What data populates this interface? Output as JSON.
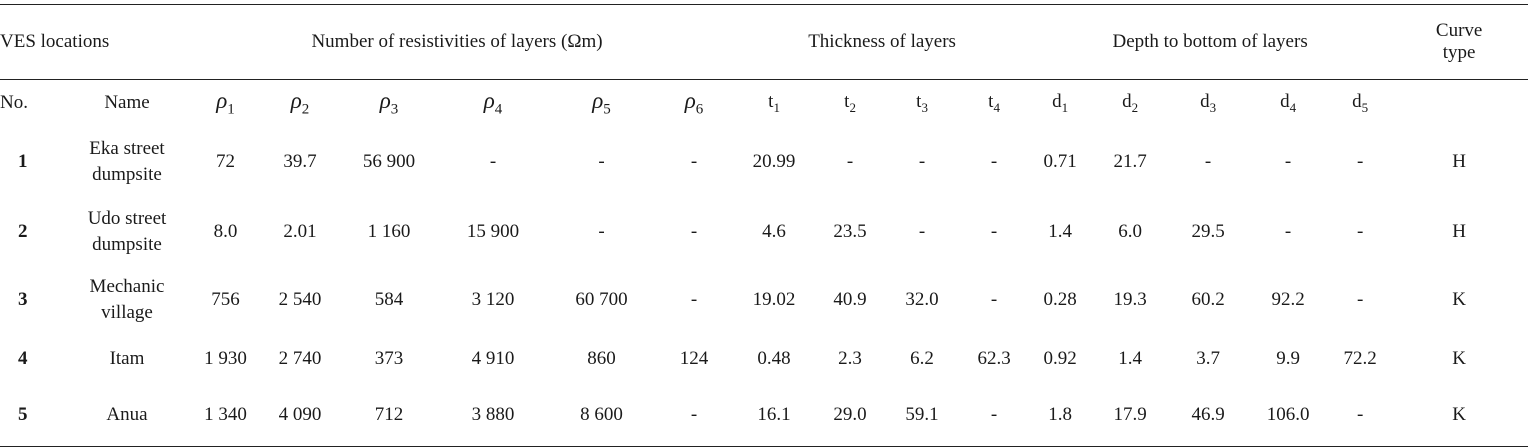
{
  "header": {
    "ves_locations": "VES locations",
    "resistivities": "Number of resistivities of layers (Ωm)",
    "thickness": "Thickness of layers",
    "depth": "Depth to bottom of layers",
    "curve_type_line1": "Curve",
    "curve_type_line2": "type"
  },
  "subheader": {
    "no": "No.",
    "name": "Name",
    "rho_symbol": "ρ",
    "rho_subs": [
      "1",
      "2",
      "3",
      "4",
      "5",
      "6"
    ],
    "t_symbol": "t",
    "t_subs": [
      "1",
      "2",
      "3",
      "4"
    ],
    "d_symbol": "d",
    "d_subs": [
      "1",
      "2",
      "3",
      "4",
      "5"
    ]
  },
  "rows": [
    {
      "no": "1",
      "name_line1": "Eka street",
      "name_line2": "dumpsite",
      "rho": [
        "72",
        "39.7",
        "56 900",
        "-",
        "-",
        "-"
      ],
      "t": [
        "20.99",
        "-",
        "-",
        "-"
      ],
      "d": [
        "0.71",
        "21.7",
        "-",
        "-",
        "-"
      ],
      "curve": "H"
    },
    {
      "no": "2",
      "name_line1": "Udo street",
      "name_line2": "dumpsite",
      "rho": [
        "8.0",
        "2.01",
        "1 160",
        "15 900",
        "-",
        "-"
      ],
      "t": [
        "4.6",
        "23.5",
        "-",
        "-"
      ],
      "d": [
        "1.4",
        "6.0",
        "29.5",
        "-",
        "-"
      ],
      "curve": "H"
    },
    {
      "no": "3",
      "name_line1": "Mechanic",
      "name_line2": "village",
      "rho": [
        "756",
        "2 540",
        "584",
        "3 120",
        "60 700",
        "-"
      ],
      "t": [
        "19.02",
        "40.9",
        "32.0",
        "-"
      ],
      "d": [
        "0.28",
        "19.3",
        "60.2",
        "92.2",
        "-"
      ],
      "curve": "K"
    },
    {
      "no": "4",
      "name_line1": "Itam",
      "name_line2": "",
      "rho": [
        "1 930",
        "2 740",
        "373",
        "4 910",
        "860",
        "124"
      ],
      "t": [
        "0.48",
        "2.3",
        "6.2",
        "62.3"
      ],
      "d": [
        "0.92",
        "1.4",
        "3.7",
        "9.9",
        "72.2"
      ],
      "curve": "K"
    },
    {
      "no": "5",
      "name_line1": "Anua",
      "name_line2": "",
      "rho": [
        "1 340",
        "4 090",
        "712",
        "3 880",
        "8 600",
        "-"
      ],
      "t": [
        "16.1",
        "29.0",
        "59.1",
        "-"
      ],
      "d": [
        "1.8",
        "17.9",
        "46.9",
        "106.0",
        "-"
      ],
      "curve": "K"
    }
  ]
}
